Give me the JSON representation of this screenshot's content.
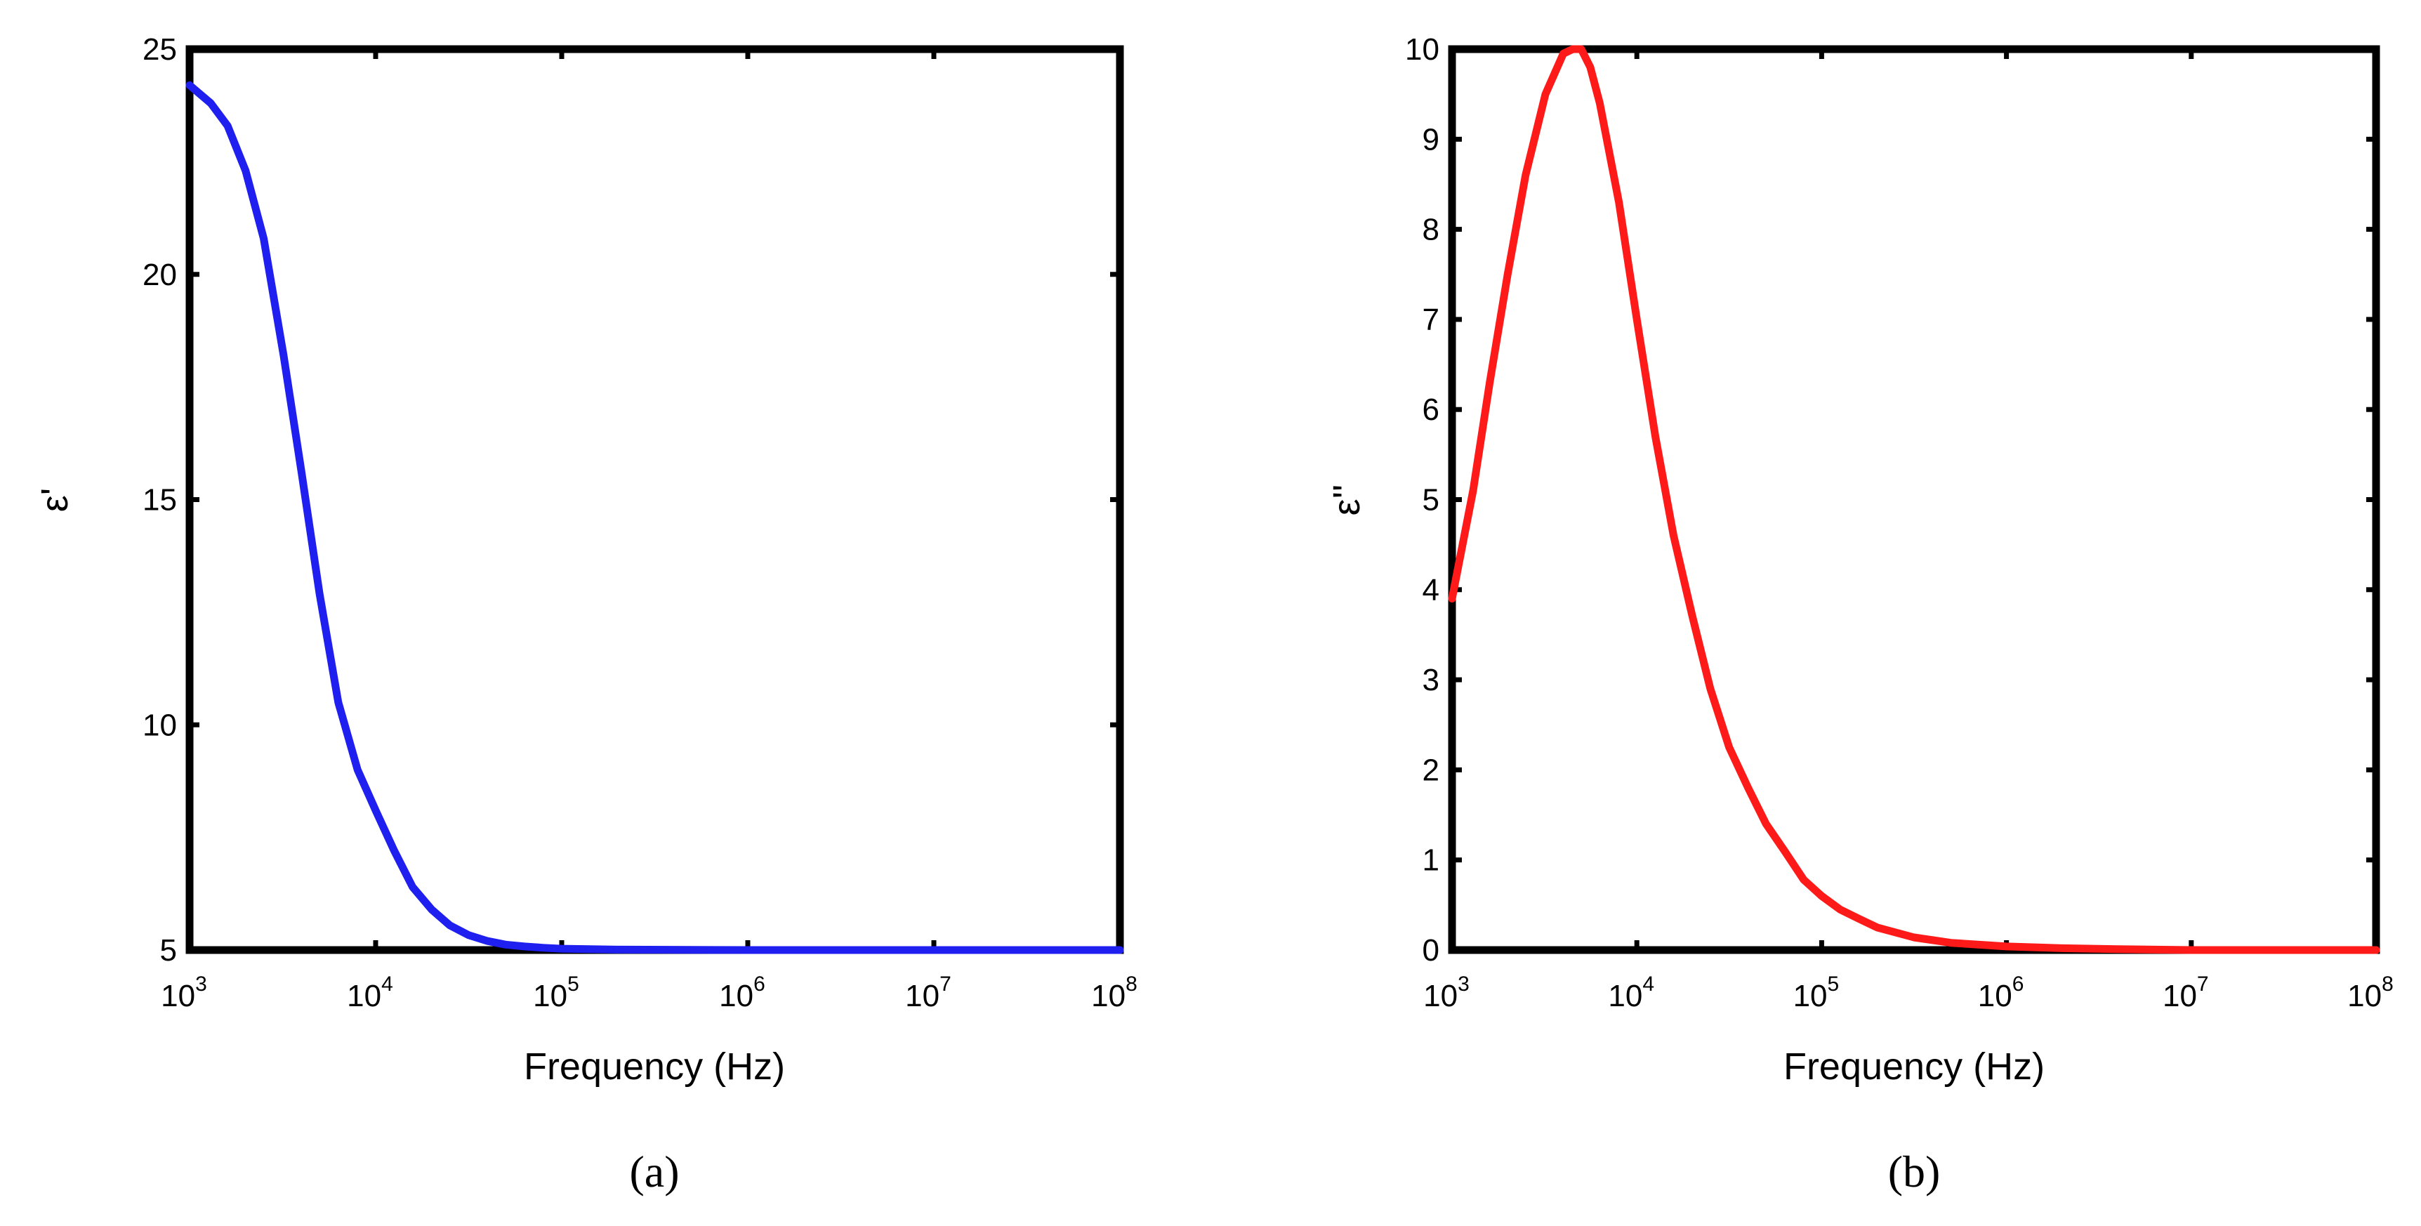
{
  "chart_data": [
    {
      "type": "line",
      "panel_label": "(a)",
      "xlabel": "Frequency (Hz)",
      "ylabel": "ε'",
      "x_scale": "log",
      "xlim": [
        1000,
        100000000
      ],
      "ylim": [
        5,
        25
      ],
      "x_ticks": [
        {
          "base": "10",
          "exp": "3"
        },
        {
          "base": "10",
          "exp": "4"
        },
        {
          "base": "10",
          "exp": "5"
        },
        {
          "base": "10",
          "exp": "6"
        },
        {
          "base": "10",
          "exp": "7"
        },
        {
          "base": "10",
          "exp": "8"
        }
      ],
      "y_ticks": [
        "5",
        "10",
        "15",
        "20",
        "25"
      ],
      "grid": false,
      "color": "#1f1ff0",
      "series": [
        {
          "x": [
            1000,
            1300,
            1600,
            2000,
            2500,
            3200,
            4000,
            5000,
            6300,
            8000,
            10000,
            12600,
            15800,
            20000,
            25000,
            31600,
            40000,
            50000,
            63000,
            80000,
            100000,
            200000,
            1000000,
            10000000,
            100000000
          ],
          "y": [
            24.2,
            23.8,
            23.3,
            22.3,
            20.8,
            18.2,
            15.6,
            12.9,
            10.5,
            9.0,
            8.1,
            7.2,
            6.4,
            5.9,
            5.55,
            5.33,
            5.2,
            5.12,
            5.08,
            5.05,
            5.03,
            5.01,
            5.0,
            5.0,
            5.0
          ]
        }
      ]
    },
    {
      "type": "line",
      "panel_label": "(b)",
      "xlabel": "Frequency (Hz)",
      "ylabel": "ε''",
      "x_scale": "log",
      "xlim": [
        1000,
        100000000
      ],
      "ylim": [
        0,
        10
      ],
      "x_ticks": [
        {
          "base": "10",
          "exp": "3"
        },
        {
          "base": "10",
          "exp": "4"
        },
        {
          "base": "10",
          "exp": "5"
        },
        {
          "base": "10",
          "exp": "6"
        },
        {
          "base": "10",
          "exp": "7"
        },
        {
          "base": "10",
          "exp": "8"
        }
      ],
      "y_ticks": [
        "0",
        "1",
        "2",
        "3",
        "4",
        "5",
        "6",
        "7",
        "8",
        "9",
        "10"
      ],
      "grid": false,
      "color": "#ff1a1a",
      "series": [
        {
          "x": [
            1000,
            1300,
            1600,
            2000,
            2500,
            3200,
            4000,
            4500,
            5000,
            5600,
            6300,
            8000,
            10000,
            12600,
            15800,
            20000,
            25000,
            31600,
            40000,
            50000,
            63000,
            80000,
            100000,
            126000,
            158000,
            200000,
            316000,
            500000,
            1000000,
            2000000,
            4000000,
            10000000,
            100000000
          ],
          "y": [
            3.9,
            5.1,
            6.3,
            7.5,
            8.6,
            9.5,
            9.95,
            10.0,
            10.0,
            9.8,
            9.4,
            8.3,
            7.0,
            5.7,
            4.6,
            3.7,
            2.9,
            2.25,
            1.8,
            1.4,
            1.1,
            0.78,
            0.6,
            0.45,
            0.35,
            0.25,
            0.14,
            0.08,
            0.04,
            0.02,
            0.01,
            0.0,
            0.0
          ]
        }
      ]
    }
  ]
}
